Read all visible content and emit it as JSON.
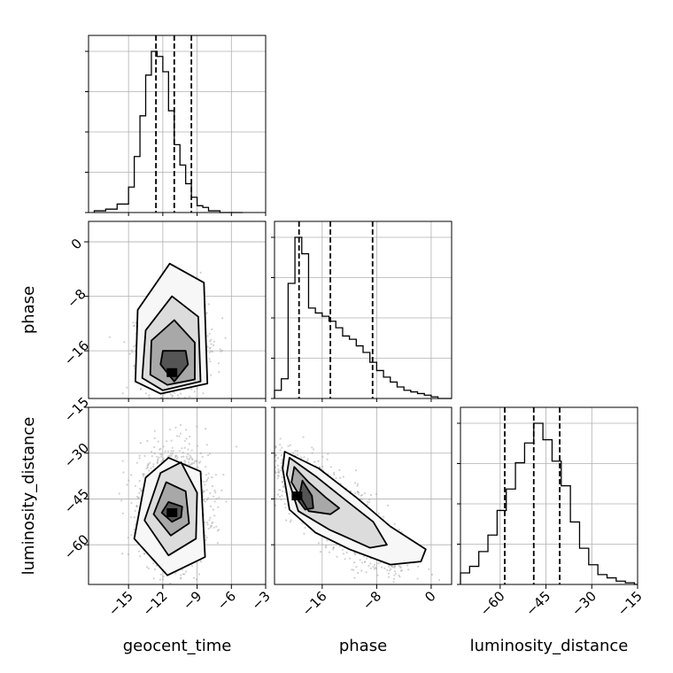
{
  "chart_data": {
    "type": "corner",
    "parameters": [
      "geocent_time",
      "phase",
      "luminosity_distance"
    ],
    "ranges": {
      "geocent_time": [
        -18.5,
        -3
      ],
      "phase": [
        -23,
        3
      ],
      "luminosity_distance": [
        -73,
        -15
      ]
    },
    "ticks": {
      "geocent_time": [
        -15,
        -12,
        -9,
        -6,
        -3
      ],
      "phase": [
        -16,
        -8,
        0
      ],
      "luminosity_distance": [
        -60,
        -45,
        -30,
        -15
      ]
    },
    "tick_labels": {
      "geocent_time": [
        "−15",
        "−12",
        "−9",
        "−6",
        "−3"
      ],
      "phase": [
        "−16",
        "−8",
        "0"
      ],
      "luminosity_distance": [
        "−60",
        "−45",
        "−30",
        "−15"
      ]
    },
    "histograms": {
      "geocent_time": {
        "bins": [
          -18,
          -17,
          -16,
          -15,
          -14.5,
          -14,
          -13.5,
          -13,
          -12.5,
          -12,
          -11.5,
          -11,
          -10.5,
          -10,
          -9.5,
          -9,
          -8.5,
          -8,
          -7.5,
          -7,
          -6.5,
          -6,
          -5.5,
          -5
        ],
        "counts": [
          0.01,
          0.02,
          0.05,
          0.15,
          0.33,
          0.57,
          0.81,
          0.95,
          0.92,
          0.83,
          0.6,
          0.4,
          0.28,
          0.17,
          0.09,
          0.04,
          0.03,
          0.01,
          0.01,
          0.0,
          0.0,
          0.0,
          0.0
        ],
        "quantiles": [
          -12.6,
          -11.0,
          -9.5
        ]
      },
      "phase": {
        "bins": [
          -23,
          -22,
          -21,
          -20,
          -19,
          -18,
          -17,
          -16,
          -15,
          -14,
          -13,
          -12,
          -11,
          -10,
          -9,
          -8,
          -7,
          -6,
          -5,
          -4,
          -3,
          -2,
          -1,
          0,
          1,
          2,
          3
        ],
        "counts": [
          0.05,
          0.12,
          0.7,
          0.98,
          0.88,
          0.55,
          0.52,
          0.5,
          0.47,
          0.43,
          0.38,
          0.36,
          0.32,
          0.28,
          0.22,
          0.17,
          0.13,
          0.1,
          0.07,
          0.05,
          0.04,
          0.03,
          0.02,
          0.01,
          0.0,
          0.0
        ],
        "quantiles": [
          -19.4,
          -14.8,
          -8.6
        ]
      },
      "luminosity_distance": {
        "bins": [
          -73,
          -70,
          -67,
          -64,
          -61,
          -58,
          -55,
          -52,
          -49,
          -46,
          -43,
          -40,
          -37,
          -34,
          -31,
          -28,
          -25,
          -22,
          -19,
          -16,
          -15
        ],
        "counts": [
          0.07,
          0.11,
          0.2,
          0.3,
          0.45,
          0.58,
          0.74,
          0.86,
          0.98,
          0.88,
          0.75,
          0.6,
          0.38,
          0.22,
          0.12,
          0.06,
          0.04,
          0.02,
          0.01,
          0.0
        ],
        "quantiles": [
          -58.5,
          -49.0,
          -40.5
        ]
      }
    },
    "joint": {
      "phase_vs_geocent_time": {
        "mean": [
          -11.0,
          -15.5
        ],
        "sd": [
          1.4,
          3.2
        ],
        "corr": 0.0,
        "contours": [
          [
            [
              -11,
              -20.5
            ],
            [
              -12.2,
              -18
            ],
            [
              -12,
              -16
            ],
            [
              -10,
              -16
            ],
            [
              -9.8,
              -18
            ],
            [
              -11,
              -20.5
            ]
          ],
          [
            [
              -11.6,
              -21
            ],
            [
              -13.1,
              -19.5
            ],
            [
              -13,
              -14.5
            ],
            [
              -11,
              -11.5
            ],
            [
              -9.2,
              -14.8
            ],
            [
              -9.2,
              -20.2
            ],
            [
              -11.6,
              -21
            ]
          ],
          [
            [
              -12,
              -21.8
            ],
            [
              -13.8,
              -20
            ],
            [
              -13.5,
              -13
            ],
            [
              -11.2,
              -8
            ],
            [
              -8.9,
              -11
            ],
            [
              -8.7,
              -20.5
            ],
            [
              -12,
              -21.8
            ]
          ],
          [
            [
              -12.2,
              -22.3
            ],
            [
              -14.4,
              -20.5
            ],
            [
              -14.2,
              -10
            ],
            [
              -11.4,
              -3.2
            ],
            [
              -8.4,
              -6
            ],
            [
              -8.1,
              -20.8
            ],
            [
              -12.2,
              -22.3
            ]
          ]
        ],
        "peak": [
          -11.2,
          -19.2
        ]
      },
      "luminosity_distance_vs_geocent_time": {
        "mean": [
          -11.0,
          -47.5
        ],
        "sd": [
          1.5,
          9.0
        ],
        "corr": 0.0,
        "contours": [
          [
            [
              -11.2,
              -52.5
            ],
            [
              -12.1,
              -49.5
            ],
            [
              -11.5,
              -46
            ],
            [
              -10.3,
              -47.5
            ],
            [
              -10.4,
              -51
            ],
            [
              -11.2,
              -52.5
            ]
          ],
          [
            [
              -11.3,
              -57
            ],
            [
              -12.8,
              -50
            ],
            [
              -11.7,
              -39.5
            ],
            [
              -10.0,
              -42.5
            ],
            [
              -9.7,
              -53
            ],
            [
              -11.3,
              -57
            ]
          ],
          [
            [
              -11.5,
              -63.5
            ],
            [
              -13.6,
              -52
            ],
            [
              -12.2,
              -36.5
            ],
            [
              -10.4,
              -33
            ],
            [
              -9.0,
              -43
            ],
            [
              -9.1,
              -58
            ],
            [
              -11.5,
              -63.5
            ]
          ],
          [
            [
              -11.6,
              -70
            ],
            [
              -14.5,
              -58
            ],
            [
              -13.5,
              -38
            ],
            [
              -11.5,
              -31.5
            ],
            [
              -8.7,
              -36
            ],
            [
              -8.3,
              -64
            ],
            [
              -11.6,
              -70
            ]
          ]
        ],
        "peak": [
          -11.2,
          -49.5
        ]
      },
      "luminosity_distance_vs_phase": {
        "mean": [
          -14.5,
          -48.0
        ],
        "sd": [
          4.8,
          9.5
        ],
        "corr": -0.82,
        "contours": [
          [
            [
              -19.5,
              -45.5
            ],
            [
              -18.9,
              -39
            ],
            [
              -17.5,
              -44
            ],
            [
              -17.3,
              -48
            ],
            [
              -18.5,
              -48.5
            ],
            [
              -19.5,
              -45.5
            ]
          ],
          [
            [
              -20.5,
              -39.5
            ],
            [
              -20.1,
              -34.5
            ],
            [
              -18,
              -39.5
            ],
            [
              -15.5,
              -44.5
            ],
            [
              -13.5,
              -48
            ],
            [
              -14.8,
              -50
            ],
            [
              -18,
              -49
            ],
            [
              -20.5,
              -39.5
            ]
          ],
          [
            [
              -21.2,
              -37
            ],
            [
              -20.8,
              -31.5
            ],
            [
              -17,
              -37.5
            ],
            [
              -12.5,
              -45.5
            ],
            [
              -8.5,
              -52.5
            ],
            [
              -6.5,
              -60
            ],
            [
              -9,
              -61
            ],
            [
              -15,
              -55
            ],
            [
              -19.5,
              -49
            ],
            [
              -21.2,
              -37
            ]
          ],
          [
            [
              -21.8,
              -35
            ],
            [
              -21.5,
              -29.5
            ],
            [
              -16.5,
              -35
            ],
            [
              -11,
              -44.5
            ],
            [
              -6,
              -54
            ],
            [
              -0.8,
              -61.5
            ],
            [
              -1.5,
              -65.5
            ],
            [
              -6,
              -66.5
            ],
            [
              -12,
              -61.5
            ],
            [
              -17,
              -56
            ],
            [
              -20.8,
              -48.5
            ],
            [
              -21.8,
              -35
            ]
          ]
        ],
        "peak": [
          -19.7,
          -44.0
        ]
      }
    },
    "xlabels": [
      "geocent_time",
      "phase",
      "luminosity_distance"
    ],
    "ylabels": [
      "",
      "phase",
      "luminosity_distance"
    ],
    "grid": true
  }
}
